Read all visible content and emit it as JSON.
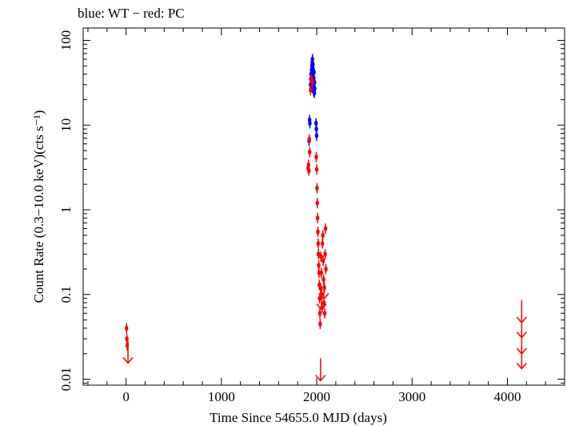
{
  "chart_data": {
    "type": "scatter",
    "title": "blue: WT − red: PC",
    "xlabel": "Time Since 54655.0 MJD (days)",
    "ylabel": "Count Rate (0.3−10.0 keV)(cts s⁻¹)",
    "xlim": [
      -450,
      4600
    ],
    "ylim": [
      0.0085,
      140
    ],
    "yscale": "log",
    "grid": false,
    "x_ticks": [
      0,
      1000,
      2000,
      3000,
      4000
    ],
    "x_tick_labels": [
      "0",
      "1000",
      "2000",
      "3000",
      "4000"
    ],
    "y_ticks": [
      0.01,
      0.1,
      1,
      10,
      100
    ],
    "y_tick_labels": [
      "0.01",
      "0.1",
      "1",
      "10",
      "100"
    ],
    "series": [
      {
        "name": "WT",
        "color": "#0000ff",
        "points": [
          [
            1920,
            6.5
          ],
          [
            1925,
            11.5
          ],
          [
            1928,
            10.5
          ],
          [
            1935,
            30
          ],
          [
            1938,
            35
          ],
          [
            1941,
            40
          ],
          [
            1944,
            28
          ],
          [
            1946,
            45
          ],
          [
            1949,
            50
          ],
          [
            1951,
            33
          ],
          [
            1953,
            55
          ],
          [
            1955,
            60
          ],
          [
            1957,
            48
          ],
          [
            1959,
            38
          ],
          [
            1961,
            52
          ],
          [
            1963,
            45
          ],
          [
            1965,
            30
          ],
          [
            1967,
            25
          ],
          [
            1969,
            36
          ],
          [
            1971,
            42
          ],
          [
            1973,
            28
          ],
          [
            1975,
            24
          ],
          [
            1977,
            32
          ],
          [
            1979,
            27
          ],
          [
            1993,
            10.5
          ],
          [
            1996,
            9
          ],
          [
            1999,
            7.5
          ]
        ]
      },
      {
        "name": "PC",
        "color": "#ff0000",
        "points": [
          [
            5,
            0.04
          ],
          [
            8,
            0.03
          ],
          [
            12,
            0.025
          ],
          [
            1910,
            3.1
          ],
          [
            1914,
            3.4
          ],
          [
            1918,
            2.9
          ],
          [
            1922,
            6.8
          ],
          [
            1926,
            4.8
          ],
          [
            1935,
            26
          ],
          [
            1945,
            35
          ],
          [
            1955,
            32
          ],
          [
            1995,
            4.2
          ],
          [
            2000,
            3.0
          ],
          [
            2003,
            1.8
          ],
          [
            2006,
            1.2
          ],
          [
            2009,
            0.8
          ],
          [
            2012,
            0.55
          ],
          [
            2015,
            0.4
          ],
          [
            2018,
            0.3
          ],
          [
            2021,
            0.22
          ],
          [
            2024,
            0.18
          ],
          [
            2027,
            0.13
          ],
          [
            2030,
            0.09
          ],
          [
            2033,
            0.06
          ],
          [
            2036,
            0.045
          ],
          [
            2040,
            0.12
          ],
          [
            2044,
            0.28
          ],
          [
            2048,
            0.18
          ],
          [
            2052,
            0.1
          ],
          [
            2056,
            0.07
          ],
          [
            2060,
            0.4
          ],
          [
            2064,
            0.5
          ],
          [
            2068,
            0.25
          ],
          [
            2072,
            0.15
          ],
          [
            2076,
            0.08
          ],
          [
            2080,
            0.12
          ],
          [
            2084,
            0.06
          ],
          [
            2088,
            0.3
          ],
          [
            2092,
            0.6
          ],
          [
            2096,
            0.2
          ]
        ],
        "upper_limits": [
          [
            20,
            0.021
          ],
          [
            2040,
            0.013
          ],
          [
            2050,
            0.09
          ],
          [
            2075,
            0.12
          ],
          [
            4150,
            0.063
          ],
          [
            4150,
            0.042
          ],
          [
            4150,
            0.027
          ],
          [
            4150,
            0.018
          ]
        ]
      }
    ]
  }
}
